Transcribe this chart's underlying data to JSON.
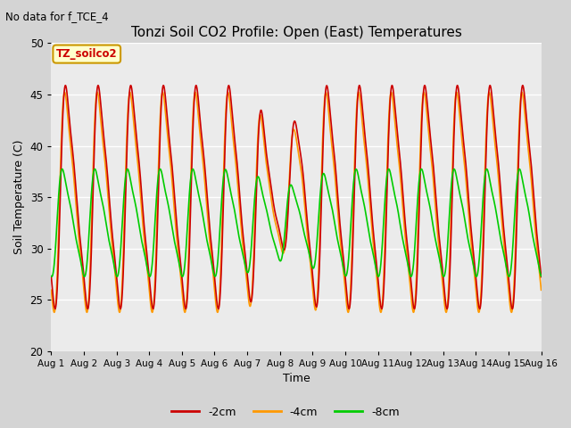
{
  "title": "Tonzi Soil CO2 Profile: Open (East) Temperatures",
  "subtitle": "No data for f_TCE_4",
  "ylabel": "Soil Temperature (C)",
  "xlabel": "Time",
  "ylim": [
    20,
    50
  ],
  "xlim": [
    0,
    15
  ],
  "xtick_labels": [
    "Aug 1",
    "Aug 2",
    "Aug 3",
    "Aug 4",
    "Aug 5",
    "Aug 6",
    "Aug 7",
    "Aug 8",
    "Aug 9",
    "Aug 10",
    "Aug 11",
    "Aug 12",
    "Aug 13",
    "Aug 14",
    "Aug 15",
    "Aug 16"
  ],
  "legend_label_2cm": "-2cm",
  "legend_label_4cm": "-4cm",
  "legend_label_8cm": "-8cm",
  "color_2cm": "#cc0000",
  "color_4cm": "#ff9900",
  "color_8cm": "#00cc00",
  "box_label": "TZ_soilco2",
  "box_facecolor": "#ffffcc",
  "box_edgecolor": "#cc9900",
  "fig_bg_color": "#d4d4d4",
  "plot_bg_color": "#ebebeb",
  "linewidth": 1.2,
  "n_points": 5000
}
